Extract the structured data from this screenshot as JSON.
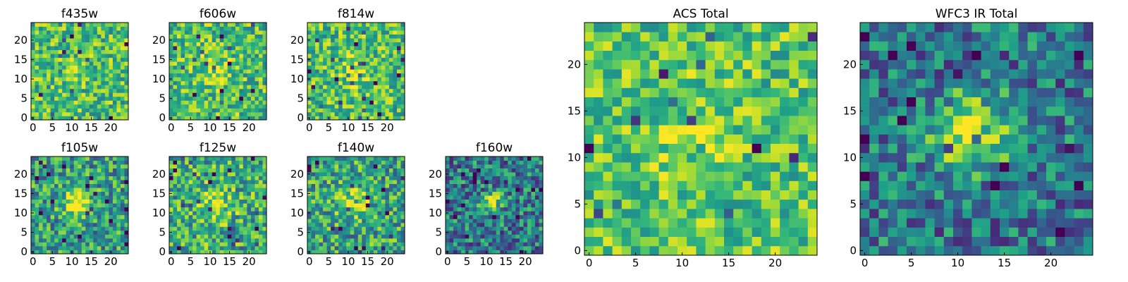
{
  "figure": {
    "background": "#ffffff",
    "colormap": "viridis"
  },
  "chart_data": [
    {
      "type": "heatmap",
      "title": "f435w",
      "size": 25,
      "seed": 435,
      "peak": 0.05,
      "sigma": 3.0,
      "noise": 0.3,
      "base": 0.7,
      "spread": 0.6,
      "xticks": [
        "0",
        "5",
        "10",
        "15",
        "20"
      ],
      "yticks": [
        "0",
        "5",
        "10",
        "15",
        "20"
      ]
    },
    {
      "type": "heatmap",
      "title": "f606w",
      "size": 25,
      "seed": 606,
      "peak": 0.18,
      "sigma": 3.0,
      "noise": 0.3,
      "base": 0.7,
      "spread": 0.6,
      "xticks": [
        "0",
        "5",
        "10",
        "15",
        "20"
      ],
      "yticks": [
        "0",
        "5",
        "10",
        "15",
        "20"
      ]
    },
    {
      "type": "heatmap",
      "title": "f814w",
      "size": 25,
      "seed": 814,
      "peak": 0.22,
      "sigma": 2.8,
      "noise": 0.3,
      "base": 0.7,
      "spread": 0.6,
      "xticks": [
        "0",
        "5",
        "10",
        "15",
        "20"
      ],
      "yticks": [
        "0",
        "5",
        "10",
        "15",
        "20"
      ]
    },
    {
      "type": "heatmap",
      "title": "f105w",
      "size": 25,
      "seed": 105,
      "peak": 0.45,
      "sigma": 2.5,
      "noise": 0.22,
      "base": 0.55,
      "spread": 0.7,
      "xticks": [
        "0",
        "5",
        "10",
        "15",
        "20"
      ],
      "yticks": [
        "0",
        "5",
        "10",
        "15",
        "20"
      ]
    },
    {
      "type": "heatmap",
      "title": "f125w",
      "size": 25,
      "seed": 125,
      "peak": 0.3,
      "sigma": 3.0,
      "noise": 0.26,
      "base": 0.62,
      "spread": 0.7,
      "xticks": [
        "0",
        "5",
        "10",
        "15",
        "20"
      ],
      "yticks": [
        "0",
        "5",
        "10",
        "15",
        "20"
      ]
    },
    {
      "type": "heatmap",
      "title": "f140w",
      "size": 25,
      "seed": 140,
      "peak": 0.35,
      "sigma": 2.8,
      "noise": 0.25,
      "base": 0.58,
      "spread": 0.7,
      "xticks": [
        "0",
        "5",
        "10",
        "15",
        "20"
      ],
      "yticks": [
        "0",
        "5",
        "10",
        "15",
        "20"
      ]
    },
    {
      "type": "heatmap",
      "title": "f160w",
      "size": 25,
      "seed": 160,
      "peak": 0.55,
      "sigma": 1.8,
      "noise": 0.22,
      "base": 0.42,
      "spread": 0.7,
      "xticks": [
        "0",
        "5",
        "10",
        "15",
        "20"
      ],
      "yticks": [
        "0",
        "5",
        "10",
        "15",
        "20"
      ]
    },
    {
      "type": "heatmap",
      "title": "ACS Total",
      "size": 25,
      "seed": 999,
      "peak": 0.12,
      "sigma": 3.2,
      "noise": 0.2,
      "base": 0.72,
      "spread": 0.55,
      "xticks": [
        "0",
        "5",
        "10",
        "15",
        "20"
      ],
      "yticks": [
        "0",
        "5",
        "10",
        "15",
        "20"
      ]
    },
    {
      "type": "heatmap",
      "title": "WFC3 IR Total",
      "size": 25,
      "seed": 777,
      "peak": 0.6,
      "sigma": 2.8,
      "noise": 0.15,
      "base": 0.4,
      "spread": 0.65,
      "xticks": [
        "0",
        "5",
        "10",
        "15",
        "20"
      ],
      "yticks": [
        "0",
        "5",
        "10",
        "15",
        "20"
      ]
    }
  ]
}
